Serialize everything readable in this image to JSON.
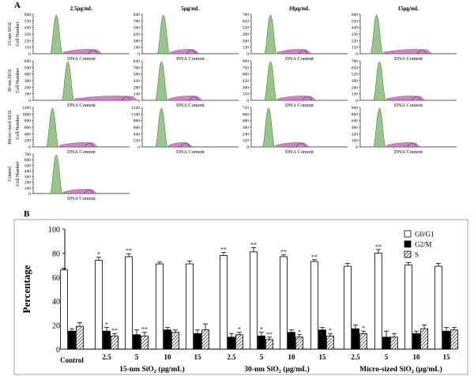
{
  "panel_a": {
    "label": "A",
    "concentrations": [
      "2.5μg/mL",
      "5μg/mL",
      "10μg/mL",
      "15μg/mL"
    ],
    "row_labels": [
      "15-nm SiO2",
      "30-nm SiO2",
      "Micro-sized SiO2",
      "Control"
    ],
    "ylabel": "Cell Number",
    "xlabel": "DNA Content",
    "ticks": [
      [
        [
          "660",
          "550",
          "440",
          "330",
          "220",
          "110",
          "0"
        ],
        [
          "840",
          "700",
          "560",
          "420",
          "280",
          "140",
          "0"
        ],
        [
          "780",
          "650",
          "520",
          "390",
          "260",
          "130",
          "0"
        ],
        [
          "660",
          "550",
          "440",
          "330",
          "220",
          "110",
          "0"
        ]
      ],
      [
        [
          "600",
          "500",
          "400",
          "300",
          "200",
          "100",
          "0"
        ],
        [
          "840",
          "700",
          "560",
          "420",
          "280",
          "140",
          "0"
        ],
        [
          "900",
          "750",
          "600",
          "450",
          "300",
          "150",
          "0"
        ],
        [
          "780",
          "650",
          "520",
          "390",
          "260",
          "130",
          "0"
        ]
      ],
      [
        [
          "1200",
          "1000",
          "800",
          "600",
          "400",
          "200",
          "0"
        ],
        [
          "1320",
          "1100",
          "880",
          "660",
          "440",
          "220",
          "0"
        ],
        [
          "720",
          "600",
          "480",
          "360",
          "240",
          "120",
          "0"
        ],
        [
          "960",
          "800",
          "640",
          "480",
          "320",
          "160",
          "0"
        ]
      ],
      [
        [
          "700",
          "600",
          "500",
          "400",
          "300",
          "200",
          "100",
          "0"
        ]
      ]
    ],
    "colors": {
      "g1_fill": "#8fbf7f",
      "g1_stroke": "#4a7a3f",
      "s_fill": "#c86ec0",
      "g2": "#3a3a3a"
    }
  },
  "panel_b": {
    "label": "B",
    "ylabel": "Percentage",
    "dose_labels": [
      "2.5",
      "5",
      "10",
      "15"
    ],
    "control_label": "Control",
    "group_labels": [
      "15-nm SiO",
      "30-nm SiO",
      "Micro-sized SiO"
    ],
    "group_unit": "(μg/mL)",
    "subscript": "2",
    "legend": [
      "G0/G1",
      "G2/M",
      "S"
    ],
    "significance": "**",
    "significance_single": "*"
  },
  "chart_data": {
    "type": "bar",
    "title": "",
    "xlabel": "",
    "ylabel": "Percentage",
    "ylim": [
      0,
      100
    ],
    "yticks": [
      0,
      20,
      40,
      60,
      80,
      100
    ],
    "categories": [
      "Control",
      "15-nm 2.5",
      "15-nm 5",
      "15-nm 10",
      "15-nm 15",
      "30-nm 2.5",
      "30-nm 5",
      "30-nm 10",
      "30-nm 15",
      "Micro 2.5",
      "Micro 5",
      "Micro 10",
      "Micro 15"
    ],
    "series": [
      {
        "name": "G0/G1",
        "values": [
          66,
          74,
          77,
          71,
          71,
          78,
          81,
          77,
          73,
          69,
          80,
          70,
          69
        ],
        "errors": [
          1.5,
          2.5,
          2.5,
          1.5,
          2.5,
          2.5,
          3.5,
          1.5,
          1.5,
          2.5,
          3,
          2,
          2.5
        ]
      },
      {
        "name": "G2/M",
        "values": [
          15,
          15,
          12,
          16,
          13,
          10,
          11,
          14,
          16,
          17,
          10,
          13,
          15
        ],
        "errors": [
          2,
          3,
          4,
          2,
          3,
          3,
          3,
          2,
          2,
          3,
          5,
          2,
          3
        ]
      },
      {
        "name": "S",
        "values": [
          19,
          11,
          11,
          14,
          16,
          12,
          8,
          10,
          11,
          13,
          10,
          17,
          16
        ],
        "errors": [
          3,
          2,
          3,
          2,
          5,
          2,
          2,
          2,
          2,
          2,
          3,
          3,
          2
        ]
      }
    ],
    "annotations": [
      {
        "category": "15-nm 2.5",
        "series": "G0/G1",
        "text": "*"
      },
      {
        "category": "15-nm 5",
        "series": "G0/G1",
        "text": "**"
      },
      {
        "category": "30-nm 2.5",
        "series": "G0/G1",
        "text": "**"
      },
      {
        "category": "30-nm 5",
        "series": "G0/G1",
        "text": "**"
      },
      {
        "category": "30-nm 10",
        "series": "G0/G1",
        "text": "**"
      },
      {
        "category": "30-nm 15",
        "series": "G0/G1",
        "text": "**"
      },
      {
        "category": "Micro 5",
        "series": "G0/G1",
        "text": "**"
      },
      {
        "category": "15-nm 2.5",
        "series": "G2/M",
        "text": "*"
      },
      {
        "category": "15-nm 2.5",
        "series": "S",
        "text": "**"
      },
      {
        "category": "15-nm 5",
        "series": "S",
        "text": "**"
      },
      {
        "category": "30-nm 2.5",
        "series": "S",
        "text": "*"
      },
      {
        "category": "30-nm 5",
        "series": "G2/M",
        "text": "*"
      },
      {
        "category": "30-nm 5",
        "series": "S",
        "text": "**"
      },
      {
        "category": "30-nm 10",
        "series": "S",
        "text": "*"
      },
      {
        "category": "30-nm 15",
        "series": "S",
        "text": "*"
      },
      {
        "category": "Micro 2.5",
        "series": "S",
        "text": "*"
      }
    ]
  }
}
